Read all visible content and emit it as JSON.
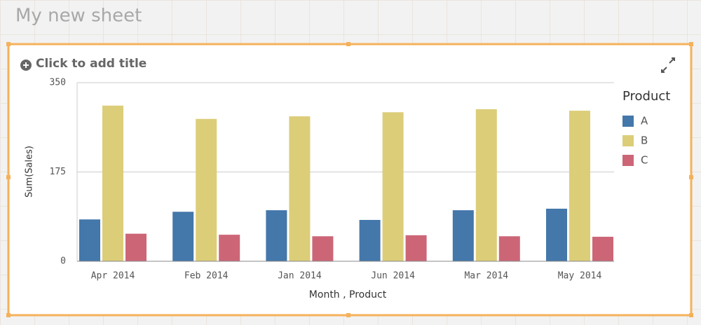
{
  "sheet_title": "My new sheet",
  "chart_title_placeholder": "Click to add title",
  "chart_data": {
    "type": "bar",
    "x_label": "Month , Product",
    "y_label": "Sum(Sales)",
    "legend_title": "Product",
    "legend_position": "right",
    "grid": true,
    "categories": [
      "Apr 2014",
      "Feb 2014",
      "Jan 2014",
      "Jun 2014",
      "Mar 2014",
      "May 2014"
    ],
    "series": [
      {
        "name": "A",
        "color": "#4477aa",
        "values": [
          82,
          97,
          100,
          81,
          100,
          103
        ]
      },
      {
        "name": "B",
        "color": "#dccd79",
        "values": [
          305,
          279,
          284,
          292,
          298,
          295
        ]
      },
      {
        "name": "C",
        "color": "#cc6677",
        "values": [
          54,
          52,
          49,
          51,
          49,
          48
        ]
      }
    ],
    "ylim": [
      0,
      350
    ],
    "yticks": [
      0,
      175,
      350
    ]
  }
}
